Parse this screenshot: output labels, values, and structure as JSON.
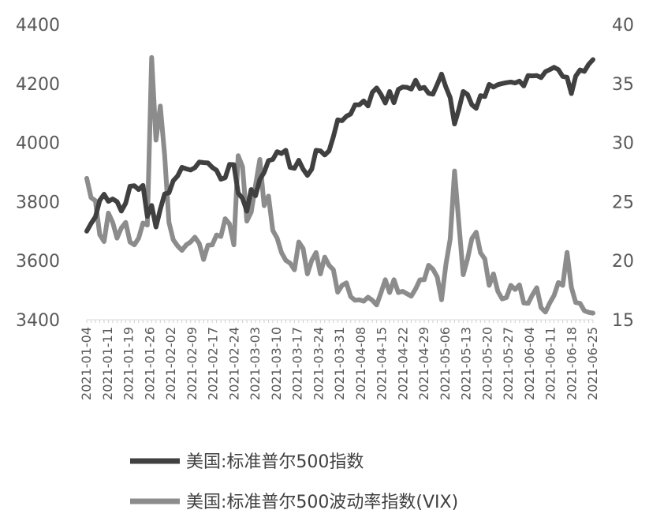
{
  "chart_data": {
    "type": "line",
    "title": "",
    "xlabel": "",
    "ylabel": "",
    "y_left": {
      "min": 3400,
      "max": 4400,
      "ticks": [
        3400,
        3600,
        3800,
        4000,
        4200,
        4400
      ],
      "tick_labels": [
        "3400",
        "3600",
        "3800",
        "4000",
        "4200",
        "4400"
      ]
    },
    "y_right": {
      "min": 15,
      "max": 40,
      "ticks": [
        15,
        20,
        25,
        30,
        35,
        40
      ],
      "tick_labels": [
        "15",
        "20",
        "25",
        "30",
        "35",
        "40"
      ]
    },
    "x_tick_labels": [
      "2021-01-04",
      "2021-01-11",
      "2021-01-19",
      "2021-01-26",
      "2021-02-02",
      "2021-02-09",
      "2021-02-17",
      "2021-02-24",
      "2021-03-03",
      "2021-03-10",
      "2021-03-17",
      "2021-03-24",
      "2021-03-31",
      "2021-04-08",
      "2021-04-15",
      "2021-04-22",
      "2021-04-29",
      "2021-05-06",
      "2021-05-13",
      "2021-05-20",
      "2021-05-27",
      "2021-06-04",
      "2021-06-11",
      "2021-06-18",
      "2021-06-25"
    ],
    "grid": false,
    "legend_position": "bottom",
    "series": [
      {
        "name": "美国:标准普尔500指数",
        "axis": "left",
        "color": "#404040",
        "values": [
          3700,
          3726,
          3748,
          3804,
          3825,
          3801,
          3809,
          3800,
          3768,
          3795,
          3852,
          3854,
          3841,
          3855,
          3750,
          3787,
          3714,
          3774,
          3826,
          3830,
          3871,
          3887,
          3916,
          3911,
          3907,
          3915,
          3934,
          3932,
          3931,
          3916,
          3906,
          3876,
          3881,
          3926,
          3925,
          3829,
          3811,
          3768,
          3841,
          3820,
          3875,
          3899,
          3939,
          3943,
          3969,
          3963,
          3974,
          3916,
          3913,
          3940,
          3910,
          3889,
          3910,
          3974,
          3972,
          3958,
          3972,
          4020,
          4077,
          4074,
          4089,
          4097,
          4128,
          4128,
          4141,
          4124,
          4170,
          4185,
          4163,
          4134,
          4173,
          4135,
          4180,
          4188,
          4187,
          4181,
          4211,
          4183,
          4187,
          4167,
          4164,
          4197,
          4232,
          4188,
          4152,
          4063,
          4113,
          4173,
          4163,
          4128,
          4116,
          4159,
          4156,
          4197,
          4188,
          4196,
          4200,
          4203,
          4205,
          4202,
          4208,
          4192,
          4227,
          4226,
          4227,
          4220,
          4240,
          4247,
          4255,
          4247,
          4224,
          4221,
          4166,
          4225,
          4246,
          4241,
          4265,
          4281
        ]
      },
      {
        "name": "美国:标准普尔500波动率指数(VIX)",
        "axis": "right",
        "color": "#8c8c8c",
        "values": [
          26.97,
          25.34,
          25.07,
          22.21,
          21.62,
          24.03,
          23.24,
          21.91,
          22.77,
          23.24,
          21.58,
          21.34,
          21.91,
          23.19,
          23.02,
          37.21,
          30.21,
          33.09,
          28.95,
          23.24,
          21.77,
          21.25,
          20.87,
          21.34,
          21.58,
          21.99,
          21.46,
          20.1,
          21.3,
          21.34,
          22.18,
          22.05,
          23.55,
          23.11,
          21.34,
          28.89,
          27.95,
          23.35,
          24.1,
          26.37,
          28.57,
          24.66,
          25.47,
          22.56,
          21.91,
          20.69,
          20.03,
          19.79,
          19.23,
          21.58,
          21.03,
          18.88,
          20.03,
          20.69,
          18.88,
          20.3,
          19.61,
          19.23,
          17.33,
          17.91,
          18.12,
          16.95,
          16.65,
          16.69,
          16.57,
          16.91,
          16.65,
          16.25,
          17.29,
          18.39,
          17.3,
          18.39,
          17.3,
          17.41,
          17.2,
          17.0,
          17.61,
          18.38,
          18.39,
          19.61,
          19.28,
          18.61,
          16.69,
          19.66,
          21.84,
          27.59,
          23.13,
          18.81,
          20.15,
          21.87,
          22.41,
          20.67,
          20.15,
          17.91,
          18.88,
          17.41,
          16.76,
          16.88,
          17.91,
          17.56,
          17.95,
          16.42,
          16.39,
          17.11,
          17.71,
          16.02,
          15.65,
          16.42,
          17.06,
          18.15,
          17.91,
          20.7,
          17.75,
          16.46,
          16.39,
          15.76,
          15.62,
          15.56
        ]
      }
    ]
  },
  "legend": {
    "items": [
      {
        "label": "美国:标准普尔500指数",
        "color": "#404040"
      },
      {
        "label": "美国:标准普尔500波动率指数(VIX)",
        "color": "#8c8c8c"
      }
    ]
  }
}
